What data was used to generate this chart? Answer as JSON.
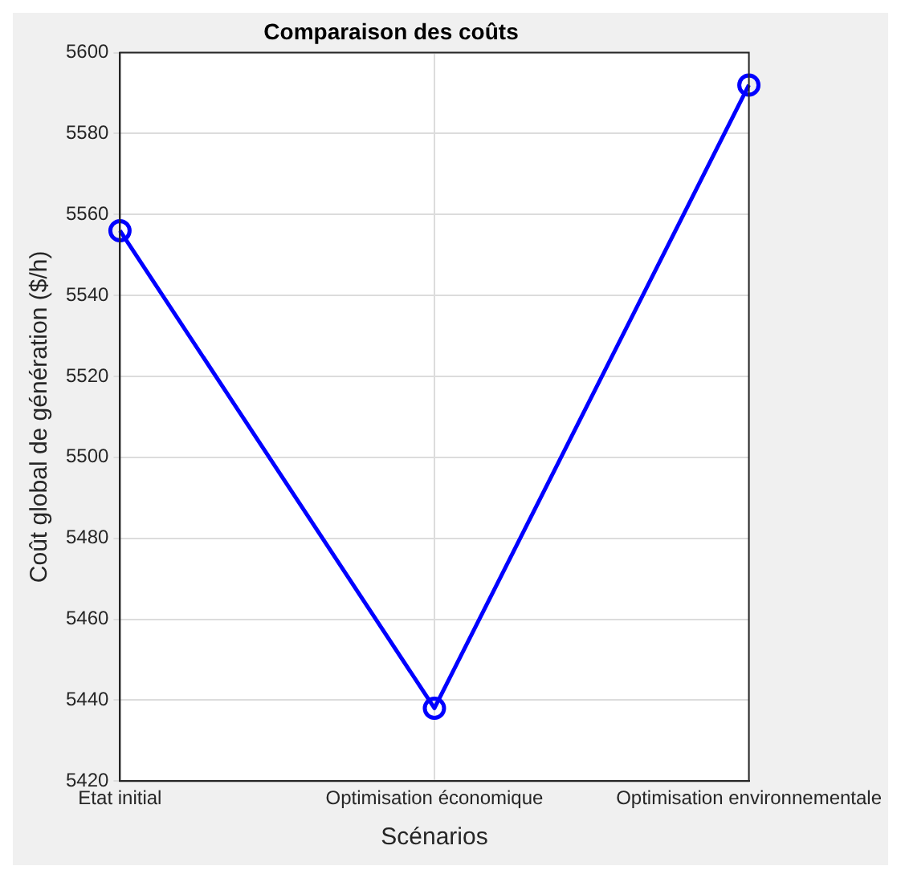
{
  "chart_data": {
    "type": "line",
    "title": "Comparaison des coûts",
    "xlabel": "Scénarios",
    "ylabel": "Coût global de génération ($/h)",
    "categories": [
      "Etat initial",
      "Optimisation économique",
      "Optimisation environnementale"
    ],
    "series": [
      {
        "color": "#0000ff",
        "values": [
          5556,
          5438,
          5592
        ]
      }
    ],
    "ylim": [
      5420,
      5600
    ],
    "yticks": [
      5420,
      5440,
      5460,
      5480,
      5500,
      5520,
      5540,
      5560,
      5580,
      5600
    ],
    "grid": true,
    "legend": false,
    "marker": "circle",
    "line_style": "solid"
  }
}
